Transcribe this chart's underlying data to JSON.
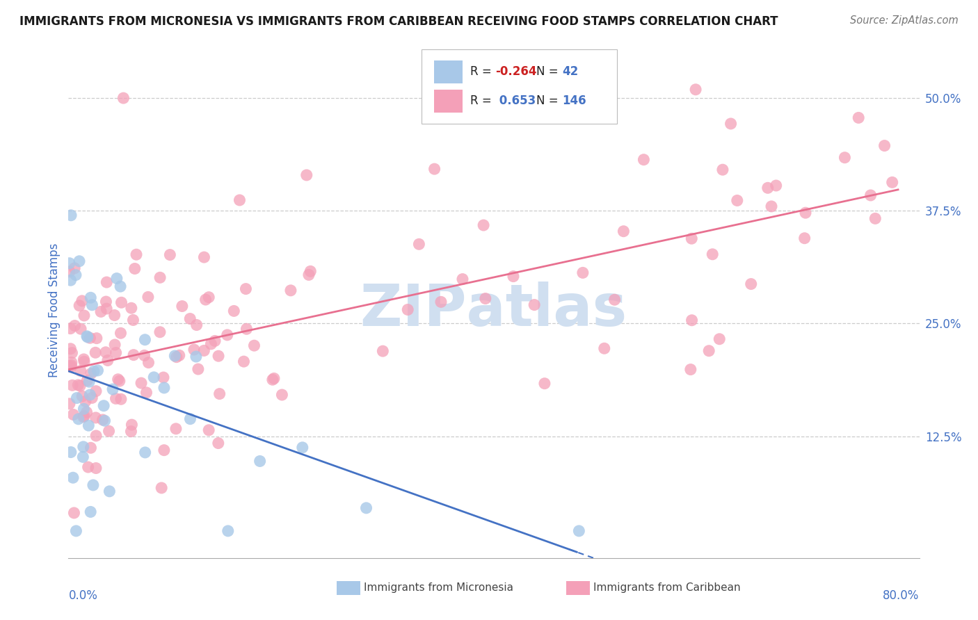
{
  "title": "IMMIGRANTS FROM MICRONESIA VS IMMIGRANTS FROM CARIBBEAN RECEIVING FOOD STAMPS CORRELATION CHART",
  "source": "Source: ZipAtlas.com",
  "ylabel": "Receiving Food Stamps",
  "xlim": [
    0.0,
    0.8
  ],
  "ylim": [
    -0.01,
    0.54
  ],
  "ytick_vals": [
    0.125,
    0.25,
    0.375,
    0.5
  ],
  "ytick_labels": [
    "12.5%",
    "25.0%",
    "37.5%",
    "50.0%"
  ],
  "micronesia_R": -0.264,
  "micronesia_N": 42,
  "caribbean_R": 0.653,
  "caribbean_N": 146,
  "micronesia_color": "#a8c8e8",
  "caribbean_color": "#f4a0b8",
  "micronesia_line_color": "#4472c4",
  "caribbean_line_color": "#e87090",
  "background_color": "#ffffff",
  "title_color": "#1a1a1a",
  "source_color": "#777777",
  "axis_label_color": "#4472c4",
  "grid_color": "#cccccc",
  "watermark_color": "#d0dff0",
  "legend_text_color": "#4472c4",
  "legend_R_neg_color": "#cc2222",
  "legend_R_pos_color": "#4472c4"
}
